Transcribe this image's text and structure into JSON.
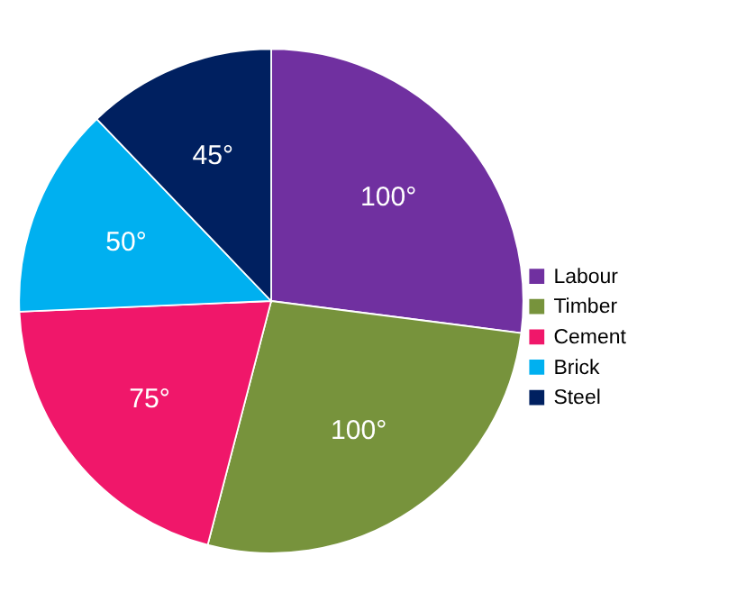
{
  "chart_data": {
    "type": "pie",
    "categories": [
      "Labour",
      "Timber",
      "Cement",
      "Brick",
      "Steel"
    ],
    "values": [
      100,
      100,
      75,
      50,
      45
    ],
    "value_labels": [
      "100°",
      "100°",
      "75°",
      "50°",
      "45°"
    ],
    "colors": [
      "#7030a0",
      "#77933c",
      "#f0176a",
      "#00b0f0",
      "#002060"
    ],
    "legend": "right"
  }
}
